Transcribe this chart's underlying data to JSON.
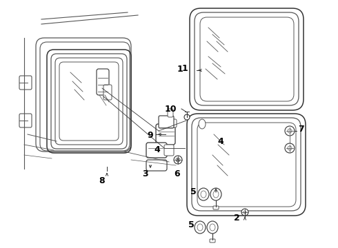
{
  "bg_color": "#ffffff",
  "lc": "#555555",
  "lc2": "#333333",
  "figw": 4.9,
  "figh": 3.6,
  "dpi": 100,
  "xmax": 490,
  "ymax": 360
}
